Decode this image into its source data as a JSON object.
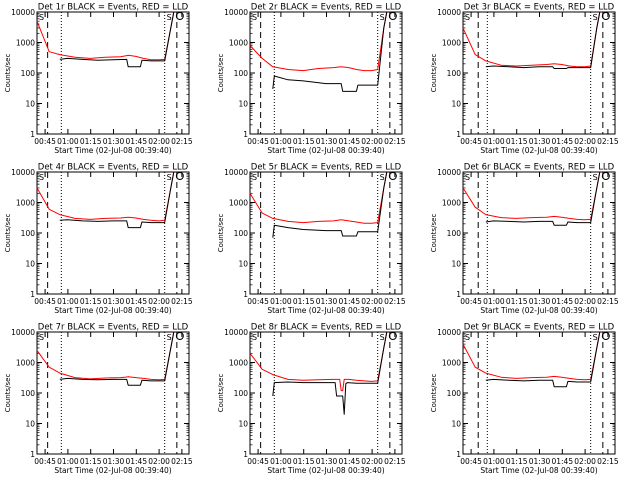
{
  "colors": {
    "events": "#000000",
    "lld": "#ff0000",
    "axes": "#000000",
    "background": "#ffffff"
  },
  "chart_data": [
    {
      "type": "line",
      "title": "Det 1r BLACK = Events, RED = LLD",
      "xlabel": "Start Time (02-Jul-08 00:39:40)",
      "ylabel": "Counts/sec",
      "xtick_labels": [
        "00:45",
        "01:00",
        "01:15",
        "01:30",
        "01:45",
        "02:00",
        "02:15"
      ],
      "ytick_labels": [
        "1",
        "10",
        "100",
        "1000",
        "10000"
      ],
      "yscale": "log",
      "ylim": [
        1,
        10000
      ],
      "vlines_dashed_min": [
        7.0,
        92.0
      ],
      "vlines_dotted_min": [
        16.0,
        84.0
      ],
      "markers": [
        "S",
        "S"
      ],
      "series": [
        {
          "x": [
            0,
            8,
            15,
            25,
            35,
            45,
            55,
            60,
            65,
            70,
            75,
            80,
            84,
            88,
            90
          ],
          "values": [
            5000,
            500,
            400,
            330,
            300,
            330,
            340,
            380,
            350,
            300,
            270,
            270,
            280,
            3000,
            10000
          ]
        },
        {
          "x": [
            15,
            20,
            30,
            40,
            50,
            59,
            60,
            68,
            69,
            75,
            84,
            88,
            90
          ],
          "values": [
            280,
            300,
            280,
            260,
            270,
            280,
            160,
            160,
            260,
            250,
            250,
            3000,
            10000
          ]
        }
      ]
    },
    {
      "type": "line",
      "title": "Det 2r BLACK = Events, RED = LLD",
      "xlabel": "Start Time (02-Jul-08 00:39:40)",
      "ylabel": "Counts/sec",
      "xtick_labels": [
        "00:45",
        "01:00",
        "01:15",
        "01:30",
        "01:45",
        "02:00",
        "02:15"
      ],
      "ytick_labels": [
        "1",
        "10",
        "100",
        "1000",
        "10000"
      ],
      "yscale": "log",
      "ylim": [
        1,
        10000
      ],
      "vlines_dashed_min": [
        7.0,
        92.0
      ],
      "vlines_dotted_min": [
        16.0,
        84.0
      ],
      "markers": [
        "S",
        "S"
      ],
      "series": [
        {
          "x": [
            0,
            8,
            15,
            25,
            35,
            45,
            55,
            60,
            65,
            70,
            75,
            80,
            84,
            88,
            90
          ],
          "values": [
            800,
            300,
            160,
            130,
            120,
            140,
            150,
            160,
            150,
            130,
            120,
            120,
            130,
            3000,
            10000
          ]
        },
        {
          "x": [
            15,
            16,
            25,
            35,
            50,
            60,
            61,
            70,
            71,
            75,
            84,
            88,
            90
          ],
          "values": [
            30,
            80,
            60,
            55,
            45,
            45,
            25,
            25,
            40,
            40,
            40,
            3000,
            10000
          ]
        }
      ]
    },
    {
      "type": "line",
      "title": "Det 3r BLACK = Events, RED = LLD",
      "xlabel": "Start Time (02-Jul-08 00:39:40)",
      "ylabel": "Counts/sec",
      "xtick_labels": [
        "00:45",
        "01:00",
        "01:15",
        "01:30",
        "01:45",
        "02:00",
        "02:15"
      ],
      "ytick_labels": [
        "1",
        "10",
        "100",
        "1000",
        "10000"
      ],
      "yscale": "log",
      "ylim": [
        1,
        10000
      ],
      "vlines_dashed_min": [
        10.0,
        92.0
      ],
      "vlines_dotted_min": [
        16.0,
        84.0
      ],
      "markers": [
        "S",
        "S"
      ],
      "series": [
        {
          "x": [
            0,
            8,
            15,
            25,
            35,
            45,
            55,
            60,
            65,
            70,
            75,
            80,
            84,
            88,
            90
          ],
          "values": [
            3000,
            400,
            250,
            180,
            170,
            180,
            190,
            200,
            190,
            170,
            160,
            160,
            170,
            3000,
            10000
          ]
        },
        {
          "x": [
            15,
            20,
            30,
            40,
            50,
            59,
            60,
            68,
            69,
            75,
            84,
            88,
            90
          ],
          "values": [
            160,
            170,
            160,
            150,
            160,
            160,
            140,
            140,
            150,
            150,
            150,
            3000,
            10000
          ]
        }
      ]
    },
    {
      "type": "line",
      "title": "Det 4r BLACK = Events, RED = LLD",
      "xlabel": "Start Time (02-Jul-08 00:39:40)",
      "ylabel": "Counts/sec",
      "xtick_labels": [
        "00:45",
        "01:00",
        "01:15",
        "01:30",
        "01:45",
        "02:00",
        "02:15"
      ],
      "ytick_labels": [
        "1",
        "10",
        "100",
        "1000",
        "10000"
      ],
      "yscale": "log",
      "ylim": [
        1,
        10000
      ],
      "vlines_dashed_min": [
        7.0,
        92.0
      ],
      "vlines_dotted_min": [
        16.0,
        84.0
      ],
      "markers": [
        "S",
        "S"
      ],
      "series": [
        {
          "x": [
            0,
            8,
            15,
            25,
            35,
            45,
            55,
            60,
            65,
            70,
            75,
            80,
            84,
            88,
            90
          ],
          "values": [
            3000,
            600,
            400,
            300,
            280,
            300,
            310,
            330,
            310,
            280,
            260,
            250,
            260,
            3000,
            10000
          ]
        },
        {
          "x": [
            15,
            20,
            30,
            40,
            50,
            59,
            60,
            68,
            69,
            75,
            84,
            88,
            90
          ],
          "values": [
            260,
            270,
            250,
            240,
            250,
            250,
            150,
            150,
            230,
            220,
            220,
            3000,
            10000
          ]
        }
      ]
    },
    {
      "type": "line",
      "title": "Det 5r BLACK = Events, RED = LLD",
      "xlabel": "Start Time (02-Jul-08 00:39:40)",
      "ylabel": "Counts/sec",
      "xtick_labels": [
        "00:45",
        "01:00",
        "01:15",
        "01:30",
        "01:45",
        "02:00",
        "02:15"
      ],
      "ytick_labels": [
        "1",
        "10",
        "100",
        "1000",
        "10000"
      ],
      "yscale": "log",
      "ylim": [
        1,
        10000
      ],
      "vlines_dashed_min": [
        7.0,
        92.0
      ],
      "vlines_dotted_min": [
        16.0,
        84.0
      ],
      "markers": [
        "S",
        "S"
      ],
      "series": [
        {
          "x": [
            0,
            8,
            15,
            25,
            35,
            45,
            55,
            60,
            65,
            70,
            75,
            80,
            84,
            88,
            90
          ],
          "values": [
            2000,
            450,
            300,
            240,
            220,
            240,
            250,
            270,
            250,
            230,
            210,
            210,
            220,
            3000,
            10000
          ]
        },
        {
          "x": [
            15,
            16,
            25,
            35,
            50,
            60,
            61,
            70,
            71,
            75,
            84,
            88,
            90
          ],
          "values": [
            70,
            180,
            150,
            130,
            120,
            120,
            80,
            80,
            110,
            110,
            110,
            3000,
            10000
          ]
        }
      ]
    },
    {
      "type": "line",
      "title": "Det 6r BLACK = Events, RED = LLD",
      "xlabel": "Start Time (02-Jul-08 00:39:40)",
      "ylabel": "Counts/sec",
      "xtick_labels": [
        "00:45",
        "01:00",
        "01:15",
        "01:30",
        "01:45",
        "02:00",
        "02:15"
      ],
      "ytick_labels": [
        "1",
        "10",
        "100",
        "1000",
        "10000"
      ],
      "yscale": "log",
      "ylim": [
        1,
        10000
      ],
      "vlines_dashed_min": [
        10.0,
        92.0
      ],
      "vlines_dotted_min": [
        16.0,
        84.0
      ],
      "markers": [
        "S",
        "S"
      ],
      "series": [
        {
          "x": [
            0,
            8,
            15,
            25,
            35,
            45,
            55,
            60,
            65,
            70,
            75,
            80,
            84,
            88,
            90
          ],
          "values": [
            3000,
            700,
            400,
            320,
            300,
            320,
            330,
            350,
            330,
            300,
            280,
            270,
            280,
            3000,
            10000
          ]
        },
        {
          "x": [
            15,
            20,
            30,
            40,
            50,
            59,
            60,
            68,
            69,
            75,
            84,
            88,
            90
          ],
          "values": [
            230,
            250,
            240,
            230,
            240,
            240,
            180,
            180,
            230,
            220,
            220,
            3000,
            10000
          ]
        }
      ]
    },
    {
      "type": "line",
      "title": "Det 7r BLACK = Events, RED = LLD",
      "xlabel": "Start Time (02-Jul-08 00:39:40)",
      "ylabel": "Counts/sec",
      "xtick_labels": [
        "00:45",
        "01:00",
        "01:15",
        "01:30",
        "01:45",
        "02:00",
        "02:15"
      ],
      "ytick_labels": [
        "1",
        "10",
        "100",
        "1000",
        "10000"
      ],
      "yscale": "log",
      "ylim": [
        1,
        10000
      ],
      "vlines_dashed_min": [
        7.0,
        92.0
      ],
      "vlines_dotted_min": [
        16.0,
        84.0
      ],
      "markers": [
        "S",
        "S"
      ],
      "series": [
        {
          "x": [
            0,
            8,
            15,
            25,
            35,
            45,
            55,
            60,
            65,
            70,
            75,
            80,
            84,
            88,
            90
          ],
          "values": [
            2500,
            700,
            450,
            320,
            290,
            310,
            320,
            340,
            320,
            300,
            280,
            270,
            280,
            3000,
            10000
          ]
        },
        {
          "x": [
            15,
            20,
            30,
            40,
            50,
            59,
            60,
            68,
            69,
            75,
            84,
            88,
            90
          ],
          "values": [
            280,
            300,
            280,
            270,
            280,
            280,
            180,
            180,
            260,
            250,
            250,
            3000,
            10000
          ]
        }
      ]
    },
    {
      "type": "line",
      "title": "Det 8r BLACK = Events, RED = LLD",
      "xlabel": "Start Time (02-Jul-08 00:39:40)",
      "ylabel": "Counts/sec",
      "xtick_labels": [
        "00:45",
        "01:00",
        "01:15",
        "01:30",
        "01:45",
        "02:00",
        "02:15"
      ],
      "ytick_labels": [
        "1",
        "10",
        "100",
        "1000",
        "10000"
      ],
      "yscale": "log",
      "ylim": [
        1,
        10000
      ],
      "vlines_dashed_min": [
        7.0,
        92.0
      ],
      "vlines_dotted_min": [
        16.0,
        84.0
      ],
      "markers": [
        "S",
        "S"
      ],
      "series": [
        {
          "x": [
            0,
            8,
            15,
            25,
            35,
            45,
            55,
            59,
            60,
            61,
            62,
            65,
            70,
            75,
            80,
            84,
            88,
            90
          ],
          "values": [
            2000,
            600,
            400,
            280,
            260,
            270,
            280,
            280,
            120,
            120,
            280,
            280,
            260,
            250,
            240,
            250,
            3000,
            10000
          ]
        },
        {
          "x": [
            15,
            16,
            25,
            35,
            50,
            56,
            57,
            61,
            62,
            63,
            64,
            70,
            84,
            88,
            90
          ],
          "values": [
            80,
            220,
            230,
            220,
            220,
            220,
            80,
            80,
            20,
            200,
            220,
            210,
            210,
            3000,
            10000
          ]
        }
      ]
    },
    {
      "type": "line",
      "title": "Det 9r BLACK = Events, RED = LLD",
      "xlabel": "Start Time (02-Jul-08 00:39:40)",
      "ylabel": "Counts/sec",
      "xtick_labels": [
        "00:45",
        "01:00",
        "01:15",
        "01:30",
        "01:45",
        "02:00",
        "02:15"
      ],
      "ytick_labels": [
        "1",
        "10",
        "100",
        "1000",
        "10000"
      ],
      "yscale": "log",
      "ylim": [
        1,
        10000
      ],
      "vlines_dashed_min": [
        10.0,
        92.0
      ],
      "vlines_dotted_min": [
        16.0,
        84.0
      ],
      "markers": [
        "S",
        "S"
      ],
      "series": [
        {
          "x": [
            0,
            8,
            15,
            25,
            35,
            45,
            55,
            60,
            65,
            70,
            75,
            80,
            84,
            88,
            90
          ],
          "values": [
            4000,
            700,
            450,
            330,
            300,
            320,
            330,
            350,
            330,
            300,
            280,
            270,
            280,
            3000,
            10000
          ]
        },
        {
          "x": [
            15,
            20,
            30,
            40,
            50,
            59,
            60,
            68,
            69,
            75,
            84,
            88,
            90
          ],
          "values": [
            260,
            280,
            260,
            250,
            260,
            260,
            160,
            160,
            240,
            230,
            230,
            3000,
            10000
          ]
        }
      ]
    }
  ]
}
